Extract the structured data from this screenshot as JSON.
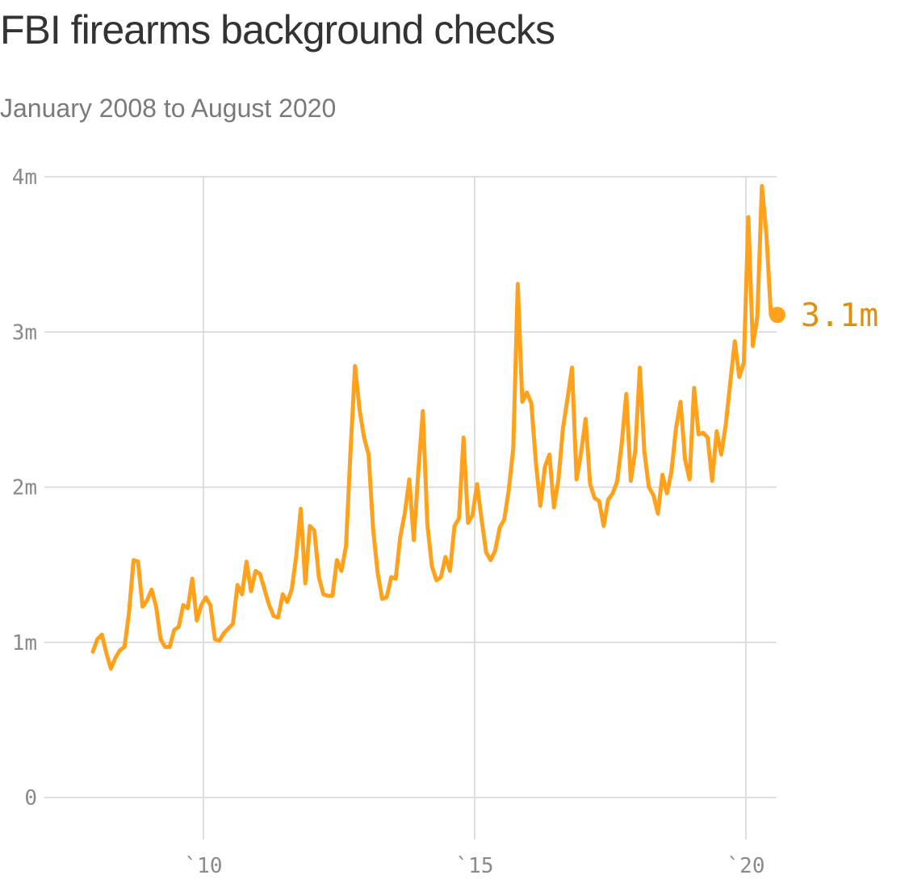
{
  "title": "FBI firearms background checks",
  "subtitle": "January 2008 to August 2020",
  "chart_data": {
    "type": "line",
    "title": "FBI firearms background checks",
    "subtitle": "January 2008 to August 2020",
    "xlabel": "",
    "ylabel": "",
    "x_ticks": [
      "`10",
      "`15",
      "`20"
    ],
    "y_ticks": [
      "0",
      "1m",
      "2m",
      "3m",
      "4m"
    ],
    "ylim": [
      0,
      4
    ],
    "grid": true,
    "color": "#ffa11a",
    "end_label": "3.1m",
    "end_label_color": "#e0900a",
    "series": [
      {
        "start": "2008-01",
        "unit": "millions of checks per month",
        "values": [
          0.94,
          1.02,
          1.05,
          0.93,
          0.83,
          0.9,
          0.95,
          0.97,
          1.19,
          1.53,
          1.52,
          1.23,
          1.27,
          1.34,
          1.23,
          1.02,
          0.97,
          0.97,
          1.08,
          1.1,
          1.24,
          1.22,
          1.41,
          1.14,
          1.24,
          1.29,
          1.24,
          1.02,
          1.01,
          1.06,
          1.09,
          1.12,
          1.37,
          1.31,
          1.52,
          1.33,
          1.46,
          1.44,
          1.34,
          1.24,
          1.17,
          1.16,
          1.31,
          1.26,
          1.34,
          1.56,
          1.86,
          1.38,
          1.75,
          1.72,
          1.42,
          1.31,
          1.3,
          1.3,
          1.53,
          1.46,
          1.62,
          2.23,
          2.78,
          2.5,
          2.32,
          2.21,
          1.73,
          1.45,
          1.28,
          1.29,
          1.42,
          1.41,
          1.68,
          1.83,
          2.05,
          1.66,
          2.1,
          2.49,
          1.76,
          1.49,
          1.4,
          1.42,
          1.55,
          1.46,
          1.75,
          1.8,
          2.32,
          1.77,
          1.82,
          2.02,
          1.79,
          1.58,
          1.53,
          1.59,
          1.74,
          1.79,
          1.98,
          2.25,
          3.31,
          2.55,
          2.61,
          2.54,
          2.16,
          1.88,
          2.13,
          2.21,
          1.87,
          2.05,
          2.38,
          2.57,
          2.77,
          2.05,
          2.22,
          2.44,
          2.02,
          1.93,
          1.91,
          1.75,
          1.92,
          1.96,
          2.04,
          2.28,
          2.6,
          2.04,
          2.24,
          2.77,
          2.23,
          2.0,
          1.95,
          1.83,
          2.08,
          1.96,
          2.1,
          2.38,
          2.55,
          2.18,
          2.05,
          2.64,
          2.34,
          2.35,
          2.32,
          2.04,
          2.36,
          2.21,
          2.4,
          2.67,
          2.94,
          2.71,
          2.8,
          3.74,
          2.91,
          3.1,
          3.94,
          3.63,
          3.11
        ]
      }
    ]
  }
}
